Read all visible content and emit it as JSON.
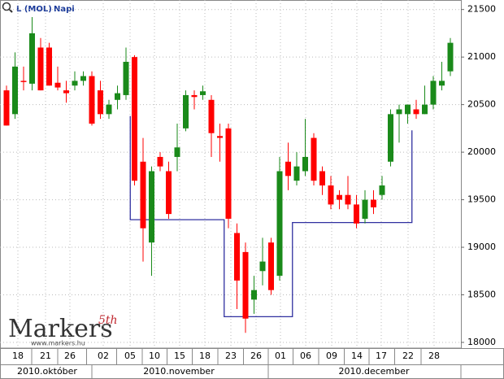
{
  "chart_data": {
    "type": "candlestick",
    "title": "L (MOL)",
    "subtitle": "Napi",
    "logo": "Markers",
    "logo_superscript": "5th",
    "logo_url": "www.markers.hu",
    "ylim": [
      17940,
      21600
    ],
    "yticks": [
      18000,
      18500,
      19000,
      19500,
      20000,
      20500,
      21000,
      21500
    ],
    "grid": true,
    "up_color": "#1a8a1a",
    "down_color": "#ff0000",
    "day_labels": [
      "18",
      "21",
      "26",
      "02",
      "05",
      "10",
      "15",
      "18",
      "23",
      "26",
      "01",
      "06",
      "09",
      "14",
      "17",
      "22",
      "28"
    ],
    "month_labels": [
      "2010.október",
      "2010.november",
      "2010.december"
    ],
    "open": [
      20650,
      20400,
      20750,
      20720,
      21100,
      21100,
      20730,
      20650,
      20700,
      20750,
      20800,
      20650,
      20400,
      20550,
      20600,
      21000,
      19900,
      19050,
      19950,
      19800,
      19950,
      20250,
      20600,
      20600,
      20550,
      20170,
      20250,
      19150,
      18950,
      18450,
      18750,
      19050,
      18700,
      19900,
      19700,
      19800,
      20150,
      19800,
      19650,
      19550,
      19550,
      19450,
      19300,
      19500,
      19550,
      19900,
      20400,
      20400,
      20450,
      20400,
      20500,
      20700,
      20850
    ],
    "high": [
      20700,
      21050,
      20900,
      21420,
      21200,
      21150,
      20900,
      20750,
      20850,
      20850,
      20850,
      20750,
      20550,
      20700,
      21100,
      21020,
      20150,
      19850,
      20000,
      19900,
      20300,
      20650,
      20650,
      20700,
      20600,
      20300,
      20300,
      19250,
      19050,
      18700,
      19100,
      19100,
      19950,
      20100,
      20000,
      20350,
      20200,
      19850,
      19750,
      19600,
      19750,
      19550,
      19600,
      19600,
      19750,
      20450,
      20500,
      20500,
      20550,
      20700,
      20800,
      20950,
      21200
    ],
    "low": [
      20280,
      20350,
      20650,
      20650,
      20650,
      20700,
      20650,
      20520,
      20650,
      20700,
      20280,
      20350,
      20350,
      20450,
      20550,
      19650,
      18850,
      18700,
      19800,
      19300,
      19800,
      20220,
      20450,
      20550,
      19950,
      19900,
      19200,
      18350,
      18100,
      18300,
      18600,
      18500,
      18650,
      19600,
      19650,
      19750,
      19650,
      19550,
      19400,
      19400,
      19400,
      19200,
      19250,
      19350,
      19500,
      19850,
      20100,
      20300,
      20350,
      20400,
      20450,
      20650,
      20800
    ],
    "close": [
      20280,
      20900,
      20740,
      21250,
      20650,
      20700,
      20680,
      20620,
      20750,
      20800,
      20300,
      20400,
      20500,
      20620,
      20950,
      19700,
      19200,
      19800,
      19850,
      19350,
      20050,
      20600,
      20580,
      20640,
      20200,
      20150,
      19300,
      18650,
      18250,
      18550,
      18850,
      18550,
      19800,
      19750,
      19850,
      19950,
      19700,
      19650,
      19450,
      19500,
      19450,
      19250,
      19500,
      19420,
      19650,
      20400,
      20450,
      20500,
      20400,
      20500,
      20750,
      20750,
      21150
    ],
    "stop_line": {
      "color": "#3030a0",
      "start": 20380,
      "end": 20230,
      "values": [
        null,
        null,
        null,
        null,
        null,
        null,
        null,
        null,
        null,
        null,
        null,
        null,
        null,
        null,
        null,
        19290,
        19290,
        19290,
        19290,
        19290,
        19290,
        19290,
        19290,
        19290,
        19290,
        19290,
        18270,
        18270,
        18270,
        18270,
        18270,
        18270,
        18270,
        18270,
        19260,
        19260,
        19260,
        19260,
        19260,
        19260,
        19260,
        19260,
        19260,
        19260,
        19260,
        19260,
        19260,
        19260,
        null,
        null,
        null,
        null,
        null
      ]
    }
  }
}
